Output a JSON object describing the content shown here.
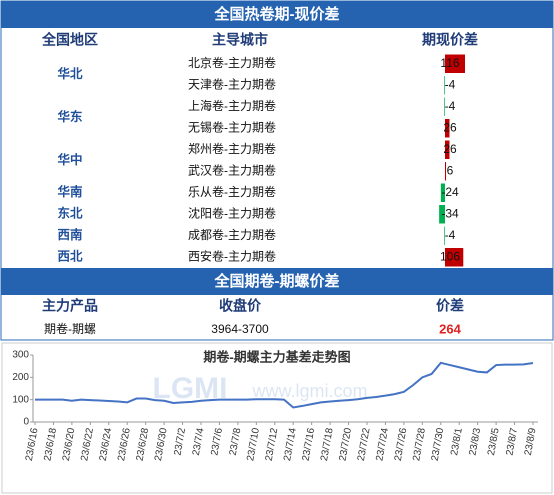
{
  "table1": {
    "title": "全国热卷期-现价差",
    "headers": [
      "全国地区",
      "主导城市",
      "期现价差"
    ],
    "rows": [
      {
        "region": "华北",
        "city": "北京卷-主力期卷",
        "value": 116
      },
      {
        "region": null,
        "city": "天津卷-主力期卷",
        "value": -4
      },
      {
        "region": "华东",
        "city": "上海卷-主力期卷",
        "value": -4
      },
      {
        "region": null,
        "city": "无锡卷-主力期卷",
        "value": 26
      },
      {
        "region": "华中",
        "city": "郑州卷-主力期卷",
        "value": 26
      },
      {
        "region": null,
        "city": "武汉卷-主力期卷",
        "value": 6
      },
      {
        "region": "华南",
        "city": "乐从卷-主力期卷",
        "value": -24
      },
      {
        "region": "东北",
        "city": "沈阳卷-主力期卷",
        "value": -34
      },
      {
        "region": "西南",
        "city": "成都卷-主力期卷",
        "value": -4
      },
      {
        "region": "西北",
        "city": "西安卷-主力期卷",
        "value": 106
      }
    ],
    "positive_color": "#c00000",
    "negative_color": "#00b050"
  },
  "table2": {
    "title": "全国期卷-期螺价差",
    "headers": [
      "主力产品",
      "收盘价",
      "价差"
    ],
    "rows": [
      [
        "期卷-期螺",
        "3964-3700",
        264
      ]
    ]
  },
  "chart_data": {
    "type": "line",
    "title": "期卷-期螺主力基差走势图",
    "watermark": [
      "LGMI",
      "www.lgmi.com"
    ],
    "categories": [
      "23/6/16",
      null,
      "23/6/18",
      null,
      "23/6/20",
      null,
      "23/6/22",
      null,
      "23/6/24",
      null,
      "23/6/26",
      null,
      "23/6/28",
      null,
      "23/6/30",
      null,
      "23/7/2",
      null,
      "23/7/4",
      null,
      "23/7/6",
      null,
      "23/7/8",
      null,
      "23/7/10",
      null,
      "23/7/12",
      null,
      "23/7/14",
      null,
      "23/7/16",
      null,
      "23/7/18",
      null,
      "23/7/20",
      null,
      "23/7/22",
      null,
      "23/7/24",
      null,
      "23/7/26",
      null,
      "23/7/28",
      null,
      "23/7/30",
      null,
      "23/8/1",
      null,
      "23/8/3",
      null,
      "23/8/5",
      null,
      "23/8/7",
      null,
      "23/8/9"
    ],
    "values": [
      100,
      100,
      100,
      100,
      95,
      100,
      98,
      96,
      94,
      92,
      88,
      105,
      105,
      98,
      95,
      85,
      88,
      90,
      95,
      98,
      100,
      100,
      100,
      100,
      102,
      102,
      102,
      100,
      65,
      72,
      80,
      88,
      92,
      95,
      98,
      102,
      108,
      112,
      118,
      125,
      135,
      165,
      200,
      215,
      265,
      255,
      245,
      235,
      225,
      222,
      255,
      257,
      257,
      258,
      264
    ],
    "color": "#4472c4",
    "ylim": [
      0,
      300
    ],
    "yticks": [
      0,
      100,
      200,
      300
    ],
    "grid": false
  }
}
